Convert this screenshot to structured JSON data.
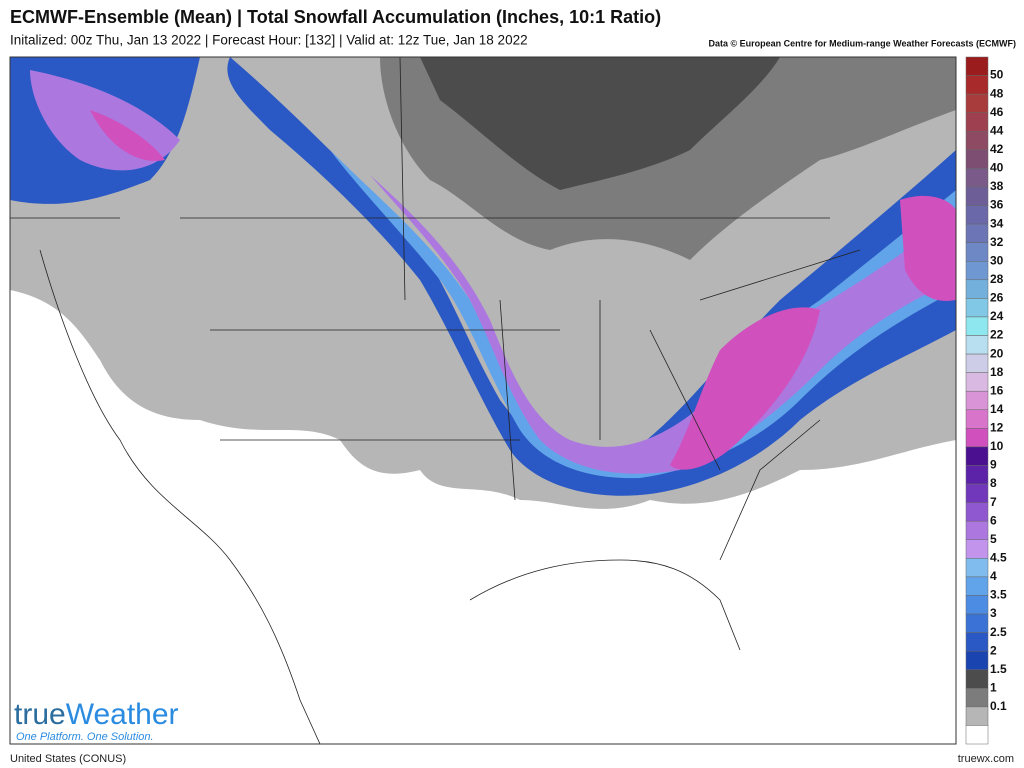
{
  "header": {
    "title": "ECMWF-Ensemble (Mean) | Total Snowfall Accumulation (Inches, 10:1 Ratio)",
    "subtitle": "Initalized: 00z Thu, Jan 13 2022 | Forecast Hour: [132] | Valid at: 12z Tue, Jan 18 2022",
    "credit": "Data © European Centre for Medium-range Weather Forecasts (ECMWF)"
  },
  "legend": {
    "labels": [
      "50",
      "48",
      "46",
      "44",
      "42",
      "40",
      "38",
      "36",
      "34",
      "32",
      "30",
      "28",
      "26",
      "24",
      "22",
      "20",
      "18",
      "16",
      "14",
      "12",
      "10",
      "9",
      "8",
      "7",
      "6",
      "5",
      "4.5",
      "4",
      "3.5",
      "3",
      "2.5",
      "2",
      "1.5",
      "1",
      "0.1"
    ],
    "colors": [
      "#9b1c1c",
      "#a82a2a",
      "#a83c3c",
      "#9e4050",
      "#8e4a62",
      "#7e4e72",
      "#7a5a88",
      "#6e5e98",
      "#6a68a8",
      "#6c76b6",
      "#6e88c6",
      "#6f98d2",
      "#74b0dc",
      "#80c8e6",
      "#8ee6ee",
      "#b8dff0",
      "#cdcde8",
      "#d9b8e2",
      "#d894d6",
      "#d874ca",
      "#d050be",
      "#4a1090",
      "#5c22a8",
      "#7238bc",
      "#9058d0",
      "#ac78e0",
      "#c294ec",
      "#80bcee",
      "#62a4ea",
      "#4c8ce2",
      "#3a72d6",
      "#2a58c4",
      "#1a44b0",
      "#4c4c4c",
      "#7c7c7c",
      "#b6b6b6",
      "#ffffff"
    ]
  },
  "logo": {
    "part1": "true",
    "part2": "Weather",
    "tagline": "One Platform. One Solution."
  },
  "footer": {
    "region": "United States (CONUS)",
    "site": "truewx.com"
  }
}
